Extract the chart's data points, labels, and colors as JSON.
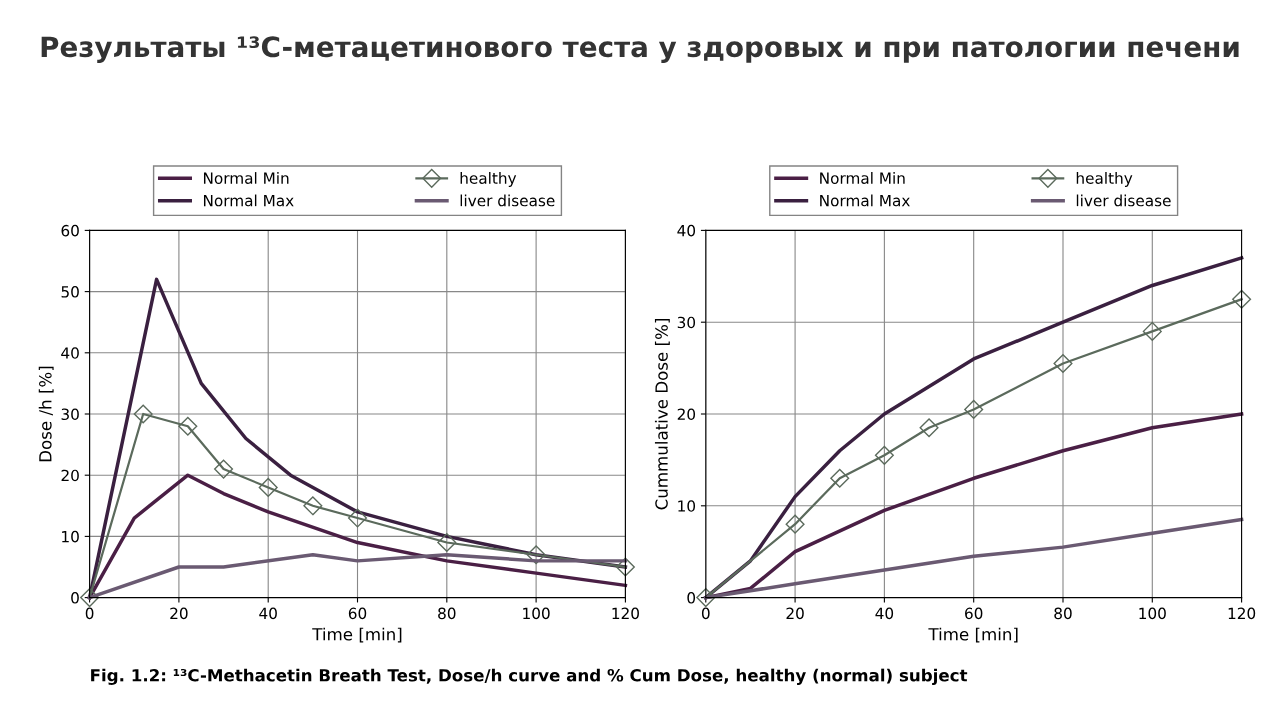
{
  "chart_data": [
    {
      "type": "line",
      "title": "Результаты ¹³C-метацетинового теста у здоровых и при патологии печени",
      "xlabel": "Time [min]",
      "ylabel": "Dose /h [%]",
      "xlim": [
        0,
        120
      ],
      "xticks": [
        0,
        20,
        40,
        60,
        80,
        100,
        120
      ],
      "ylim": [
        0,
        60
      ],
      "yticks": [
        0,
        10,
        20,
        30,
        40,
        50,
        60
      ],
      "grid": true,
      "legend": "top",
      "marker": "none",
      "line_style": "solid",
      "annotations": [
        "Fig. 1.2: ¹³C-Methacetin Breath Test, Dose/h curve and % Cum Dose, healthy (normal) subject"
      ],
      "series": [
        {
          "name": "Normal Min",
          "color": "#4a1f45",
          "x": [
            0,
            10,
            22,
            30,
            40,
            60,
            80,
            100,
            120
          ],
          "values": [
            0,
            13,
            20,
            17,
            14,
            9,
            6,
            4,
            2
          ]
        },
        {
          "name": "Normal Max",
          "color": "#3a2040",
          "x": [
            0,
            15,
            25,
            35,
            45,
            60,
            80,
            100,
            120
          ],
          "values": [
            0,
            52,
            35,
            26,
            20,
            14,
            10,
            7,
            5
          ]
        },
        {
          "name": "healthy",
          "color": "#5b6a5c",
          "marker": "diamond",
          "x": [
            0,
            12,
            22,
            30,
            40,
            50,
            60,
            80,
            100,
            120
          ],
          "values": [
            0,
            30,
            28,
            21,
            18,
            15,
            13,
            9,
            7,
            5
          ]
        },
        {
          "name": "liver disease",
          "color": "#6a5a72",
          "x": [
            0,
            20,
            30,
            50,
            60,
            80,
            100,
            120
          ],
          "values": [
            0,
            5,
            5,
            7,
            6,
            7,
            6,
            6
          ]
        }
      ]
    },
    {
      "type": "line",
      "xlabel": "Time [min]",
      "ylabel": "Cummulative Dose [%]",
      "xlim": [
        0,
        120
      ],
      "xticks": [
        0,
        20,
        40,
        60,
        80,
        100,
        120
      ],
      "ylim": [
        0,
        40
      ],
      "yticks": [
        0,
        10,
        20,
        30,
        40
      ],
      "grid": true,
      "legend": "top",
      "marker": "none",
      "line_style": "solid",
      "series": [
        {
          "name": "Normal Min",
          "color": "#4a1f45",
          "x": [
            0,
            10,
            20,
            40,
            60,
            80,
            100,
            120
          ],
          "values": [
            0,
            1,
            5,
            9.5,
            13,
            16,
            18.5,
            20
          ]
        },
        {
          "name": "Normal Max",
          "color": "#3a2040",
          "x": [
            0,
            10,
            20,
            30,
            40,
            60,
            80,
            100,
            120
          ],
          "values": [
            0,
            4,
            11,
            16,
            20,
            26,
            30,
            34,
            37
          ]
        },
        {
          "name": "healthy",
          "color": "#5b6a5c",
          "marker": "diamond",
          "x": [
            0,
            20,
            30,
            40,
            50,
            60,
            80,
            100,
            120
          ],
          "values": [
            0,
            8,
            13,
            15.5,
            18.5,
            20.5,
            25.5,
            29,
            32.5
          ]
        },
        {
          "name": "liver disease",
          "color": "#6a5a72",
          "x": [
            0,
            20,
            40,
            60,
            80,
            100,
            120
          ],
          "values": [
            0,
            1.5,
            3,
            4.5,
            5.5,
            7,
            8.5
          ]
        }
      ]
    }
  ]
}
